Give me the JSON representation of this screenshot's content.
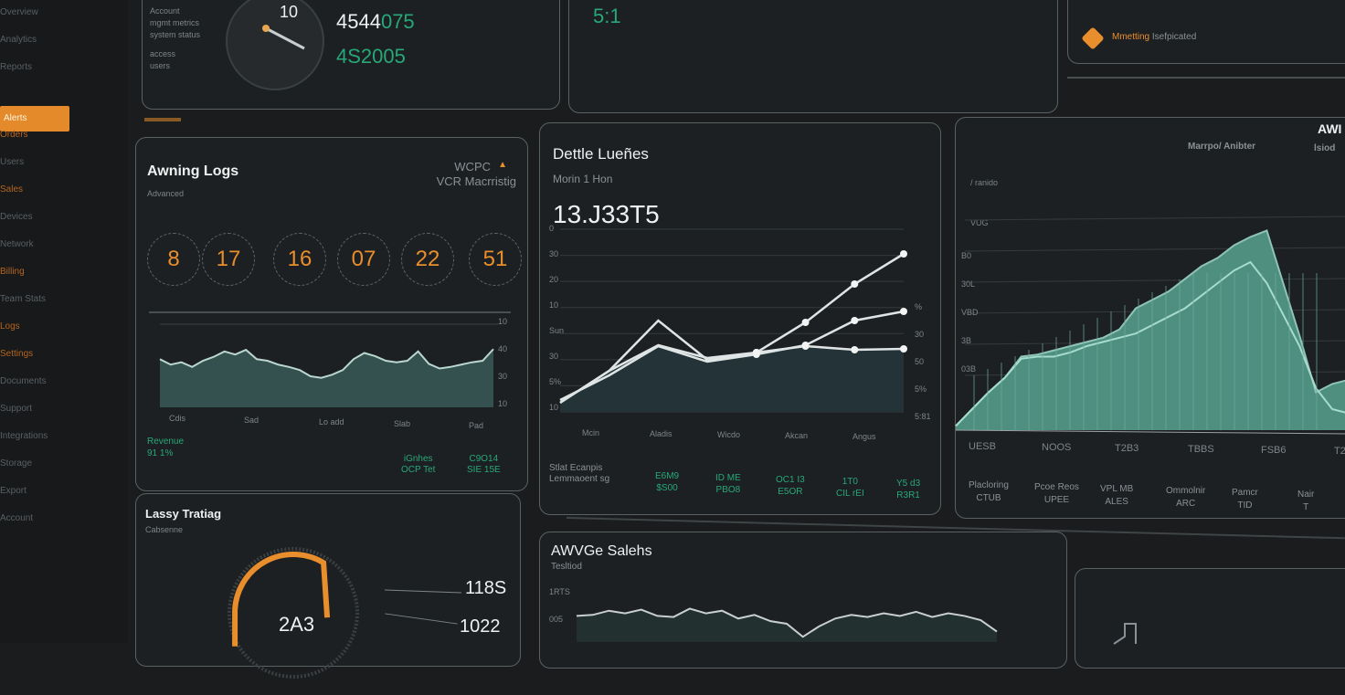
{
  "sidebar": {
    "items": [
      {
        "label": "Overview",
        "state": "normal"
      },
      {
        "label": "Analytics",
        "state": "normal"
      },
      {
        "label": "Reports",
        "state": "normal"
      },
      {
        "label": "Alerts",
        "state": "active"
      },
      {
        "label": "Orders",
        "state": "orange"
      },
      {
        "label": "Users",
        "state": "normal"
      },
      {
        "label": "Sales",
        "state": "orange"
      },
      {
        "label": "Devices",
        "state": "normal"
      },
      {
        "label": "Network",
        "state": "normal"
      },
      {
        "label": "Billing",
        "state": "orange"
      },
      {
        "label": "Team Stats",
        "state": "normal"
      },
      {
        "label": "Logs",
        "state": "orange"
      },
      {
        "label": "Settings",
        "state": "orange"
      },
      {
        "label": "Documents",
        "state": "normal"
      },
      {
        "label": "Support",
        "state": "normal"
      },
      {
        "label": "Integrations",
        "state": "normal"
      },
      {
        "label": "Storage",
        "state": "normal"
      },
      {
        "label": "Export",
        "state": "normal"
      },
      {
        "label": "Account",
        "state": "normal"
      }
    ]
  },
  "top_gauge_panel": {
    "labels": [
      "Account",
      "mgmt metrics",
      "system status",
      "access",
      "users"
    ],
    "gauge_value_label": "10",
    "value_white": "4544",
    "value_green": "075",
    "value_second": "4S2005"
  },
  "top_middle_panel": {
    "value": "5:1"
  },
  "top_right_panel": {
    "label_orange": "Mmetting",
    "label": "Isefpicated"
  },
  "logs_panel": {
    "title": "Awning Logs",
    "subtitle": "Advanced",
    "right_title": "WCPC",
    "right_subtitle": "VCR Macrristig",
    "circles": [
      "8",
      "17",
      "16",
      "07",
      "22",
      "51"
    ],
    "x_labels": [
      "Cdis",
      "Sad",
      "Lo add",
      "Slab",
      "Pad"
    ],
    "y_labels": [
      "10",
      "40",
      "30",
      "10"
    ],
    "footer_left": [
      "Revenue",
      "91 1%"
    ],
    "footer_stats": [
      {
        "a": "iGnhes",
        "b": "OCP Tet"
      },
      {
        "a": "C9O14",
        "b": "SIE 15E"
      }
    ],
    "series": [
      62,
      55,
      58,
      52,
      60,
      65,
      72,
      68,
      74,
      62,
      60,
      55,
      52,
      48,
      40,
      38,
      42,
      48,
      62,
      70,
      66,
      60,
      58,
      60,
      72,
      56,
      50,
      52,
      55,
      58,
      60,
      75
    ]
  },
  "line_panel": {
    "title": "Dettle Lueñes",
    "subtitle": "Morin 1 Hon",
    "big_value": "13.J33T5",
    "y_labels": [
      "0",
      "30",
      "20",
      "10",
      "Sun",
      "30",
      "5%",
      "10"
    ],
    "right_labels": [
      "%",
      "30",
      "50",
      "5%",
      "5:81"
    ],
    "x_labels": [
      "Mcin",
      "Aladis",
      "Wicdo",
      "Akcan",
      "Angus"
    ],
    "footer_label": [
      "Stlat Ecanpis",
      "Lemmaoent sg"
    ],
    "footer_stats": [
      {
        "a": "E6M9",
        "b": "$S00"
      },
      {
        "a": "ID ME",
        "b": "PBO8"
      },
      {
        "a": "OC1 I3",
        "b": "E5OR"
      },
      {
        "a": "1T0",
        "b": "CIL rEI"
      },
      {
        "a": "Y5 d3",
        "b": "R3R1"
      }
    ],
    "chart_data": {
      "type": "line",
      "x": [
        0,
        1,
        2,
        3,
        4,
        5,
        6,
        7
      ],
      "series": [
        {
          "values": [
            5,
            22.5,
            50,
            28.5,
            32.5,
            49,
            70,
            86.5
          ]
        },
        {
          "values": [
            6.5,
            20,
            36,
            27.5,
            31.5,
            36.5,
            50,
            55
          ]
        },
        {
          "values": [
            5,
            22.5,
            36.5,
            29.5,
            32.5,
            36,
            34,
            34.5
          ],
          "fill": true
        }
      ],
      "ylim": [
        0,
        100
      ]
    }
  },
  "area_panel": {
    "title": "AWI",
    "subtitle": "Marrpo/ Anibter",
    "subtitle_right": "lsiod",
    "legend": "/ ranido",
    "axis_title": "VUG",
    "y_labels": [
      "B0",
      "30L",
      "VBD",
      "3B",
      "03B"
    ],
    "x_labels": [
      "UESB",
      "NOOS",
      "T2B3",
      "TBBS",
      "FSB6",
      "T2B"
    ],
    "footer_stats": [
      {
        "a": "Placloring",
        "b": "CTUB"
      },
      {
        "a": "Pcoe Reos",
        "b": "UPEE"
      },
      {
        "a": "VPL MB",
        "b": "ALES"
      },
      {
        "a": "Ommolnir",
        "b": "ARC"
      },
      {
        "a": "Pamcr",
        "b": "TID"
      },
      {
        "a": "Nair",
        "b": "T"
      }
    ],
    "series_top": [
      2,
      10,
      18,
      25,
      35,
      36,
      38,
      40,
      42,
      44,
      48,
      58,
      62,
      66,
      72,
      78,
      82,
      88,
      92,
      95,
      70,
      45,
      18,
      22,
      24
    ],
    "series_inner": [
      2,
      10,
      18,
      25,
      34,
      35,
      35,
      37,
      40,
      42,
      44,
      46,
      50,
      54,
      58,
      64,
      70,
      76,
      80,
      70,
      55,
      40,
      20,
      10,
      8
    ],
    "accent": "#4e8f80"
  },
  "bottom_gauge_panel": {
    "title": "Lassy Tratiag",
    "subtitle": "Cabsenne",
    "gauge_value": "2A3",
    "gauge_fill_percent": 55,
    "stat_1": "118S",
    "stat_2": "1022"
  },
  "bottom_chart_panel": {
    "title": "AWVGe Salehs",
    "subtitle": "Tesltiod",
    "y_labels": [
      "1RTS",
      "005"
    ],
    "series": [
      50,
      52,
      60,
      55,
      62,
      50,
      48,
      64,
      55,
      60,
      45,
      52,
      40,
      35,
      10,
      30,
      45,
      52,
      48,
      55,
      50,
      58,
      48,
      55,
      50,
      42,
      20
    ]
  },
  "colors": {
    "accent_orange": "#e88e2c",
    "accent_green": "#27a878",
    "teal_fill": "#2e4a4c",
    "panel_border": "#5a6163"
  }
}
